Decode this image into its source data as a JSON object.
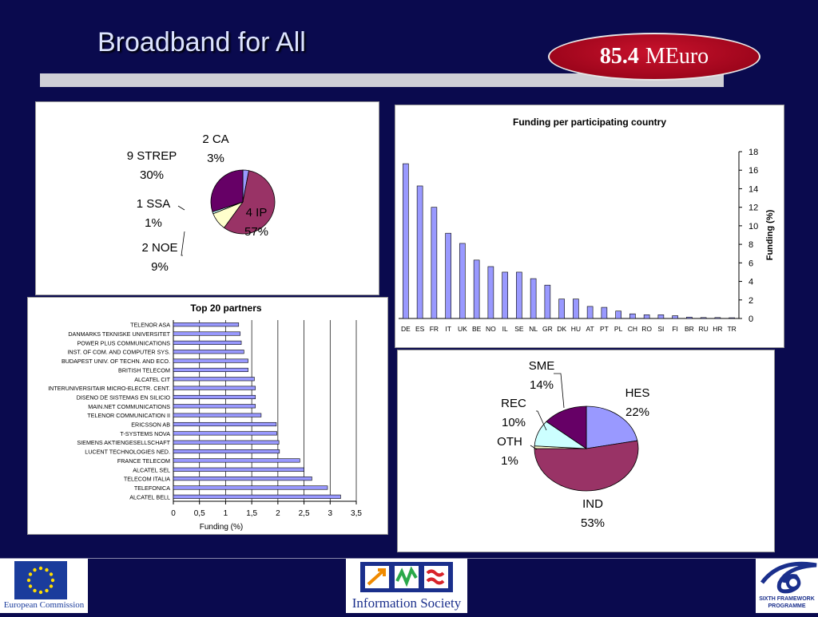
{
  "slide": {
    "title": "Broadband for All",
    "budget_value": "85.4",
    "budget_unit": "MEuro"
  },
  "chart_data": [
    {
      "type": "pie",
      "title": "",
      "slices": [
        {
          "label": "2 CA",
          "value": 3,
          "pct": "3%",
          "color": "#9999ff"
        },
        {
          "label": "4 IP",
          "value": 57,
          "pct": "57%",
          "color": "#993366"
        },
        {
          "label": "2 NOE",
          "value": 9,
          "pct": "9%",
          "color": "#ffffcc"
        },
        {
          "label": "1 SSA",
          "value": 1,
          "pct": "1%",
          "color": "#ccffff"
        },
        {
          "label": "9 STREP",
          "value": 30,
          "pct": "30%",
          "color": "#660066"
        }
      ]
    },
    {
      "type": "bar",
      "title": "Funding per participating country",
      "xlabel": "",
      "ylabel": "Funding (%)",
      "ylim": [
        0,
        18
      ],
      "yticks": [
        "0",
        "2",
        "4",
        "6",
        "8",
        "10",
        "12",
        "14",
        "16",
        "18"
      ],
      "categories": [
        "DE",
        "ES",
        "FR",
        "IT",
        "UK",
        "BE",
        "NO",
        "IL",
        "SE",
        "NL",
        "GR",
        "DK",
        "HU",
        "AT",
        "PT",
        "PL",
        "CH",
        "RO",
        "SI",
        "FI",
        "BR",
        "RU",
        "HR",
        "TR"
      ],
      "values": [
        16.7,
        14.3,
        12.0,
        9.2,
        8.1,
        6.3,
        5.6,
        5.0,
        5.0,
        4.3,
        3.6,
        2.1,
        2.1,
        1.3,
        1.2,
        0.8,
        0.5,
        0.4,
        0.4,
        0.3,
        0.15,
        0.1,
        0.1,
        0.08
      ],
      "color": "#9999ff",
      "grid": false
    },
    {
      "type": "bar",
      "orientation": "horizontal",
      "title": "Top 20 partners",
      "xlabel": "Funding (%)",
      "ylabel": "",
      "xlim": [
        0,
        3.5
      ],
      "xticks": [
        "0",
        "0,5",
        "1",
        "1,5",
        "2",
        "2,5",
        "3",
        "3,5"
      ],
      "categories": [
        "TELENOR ASA",
        "DANMARKS TEKNISKE UNIVERSITET",
        "POWER PLUS COMMUNICATIONS",
        "INST. OF COM. AND COMPUTER SYS.",
        "BUDAPEST UNIV. OF TECHN. AND ECO.",
        "BRITISH TELECOM",
        "ALCATEL CIT",
        "INTERUNIVERSITAIR MICRO-ELECTR. CENT.",
        "DISENO DE SISTEMAS EN SILICIO",
        "MAIN.NET COMMUNICATIONS",
        "TELENOR COMMUNICATION II",
        "ERICSSON AB",
        "T-SYSTEMS NOVA",
        "SIEMENS AKTIENGESELLSCHAFT",
        "LUCENT TECHNOLOGIES NED.",
        "FRANCE TELECOM",
        "ALCATEL SEL",
        "TELECOM ITALIA",
        "TELEFONICA",
        "ALCATEL BELL"
      ],
      "values": [
        1.25,
        1.28,
        1.3,
        1.35,
        1.43,
        1.43,
        1.55,
        1.57,
        1.57,
        1.57,
        1.68,
        1.97,
        1.98,
        2.02,
        2.03,
        2.42,
        2.5,
        2.65,
        2.95,
        3.2
      ],
      "color": "#9999ff",
      "grid": true
    },
    {
      "type": "pie",
      "title": "",
      "slices": [
        {
          "label": "HES",
          "value": 22,
          "pct": "22%",
          "color": "#9999ff"
        },
        {
          "label": "IND",
          "value": 53,
          "pct": "53%",
          "color": "#993366"
        },
        {
          "label": "OTH",
          "value": 1,
          "pct": "1%",
          "color": "#ffffcc"
        },
        {
          "label": "REC",
          "value": 10,
          "pct": "10%",
          "color": "#ccffff"
        },
        {
          "label": "SME",
          "value": 14,
          "pct": "14%",
          "color": "#660066"
        }
      ]
    }
  ],
  "footer": {
    "left_logo_text": "European Commission",
    "center_logo_text": "Information Society",
    "right_logo_text_1": "SIXTH FRAMEWORK",
    "right_logo_text_2": "PROGRAMME"
  }
}
